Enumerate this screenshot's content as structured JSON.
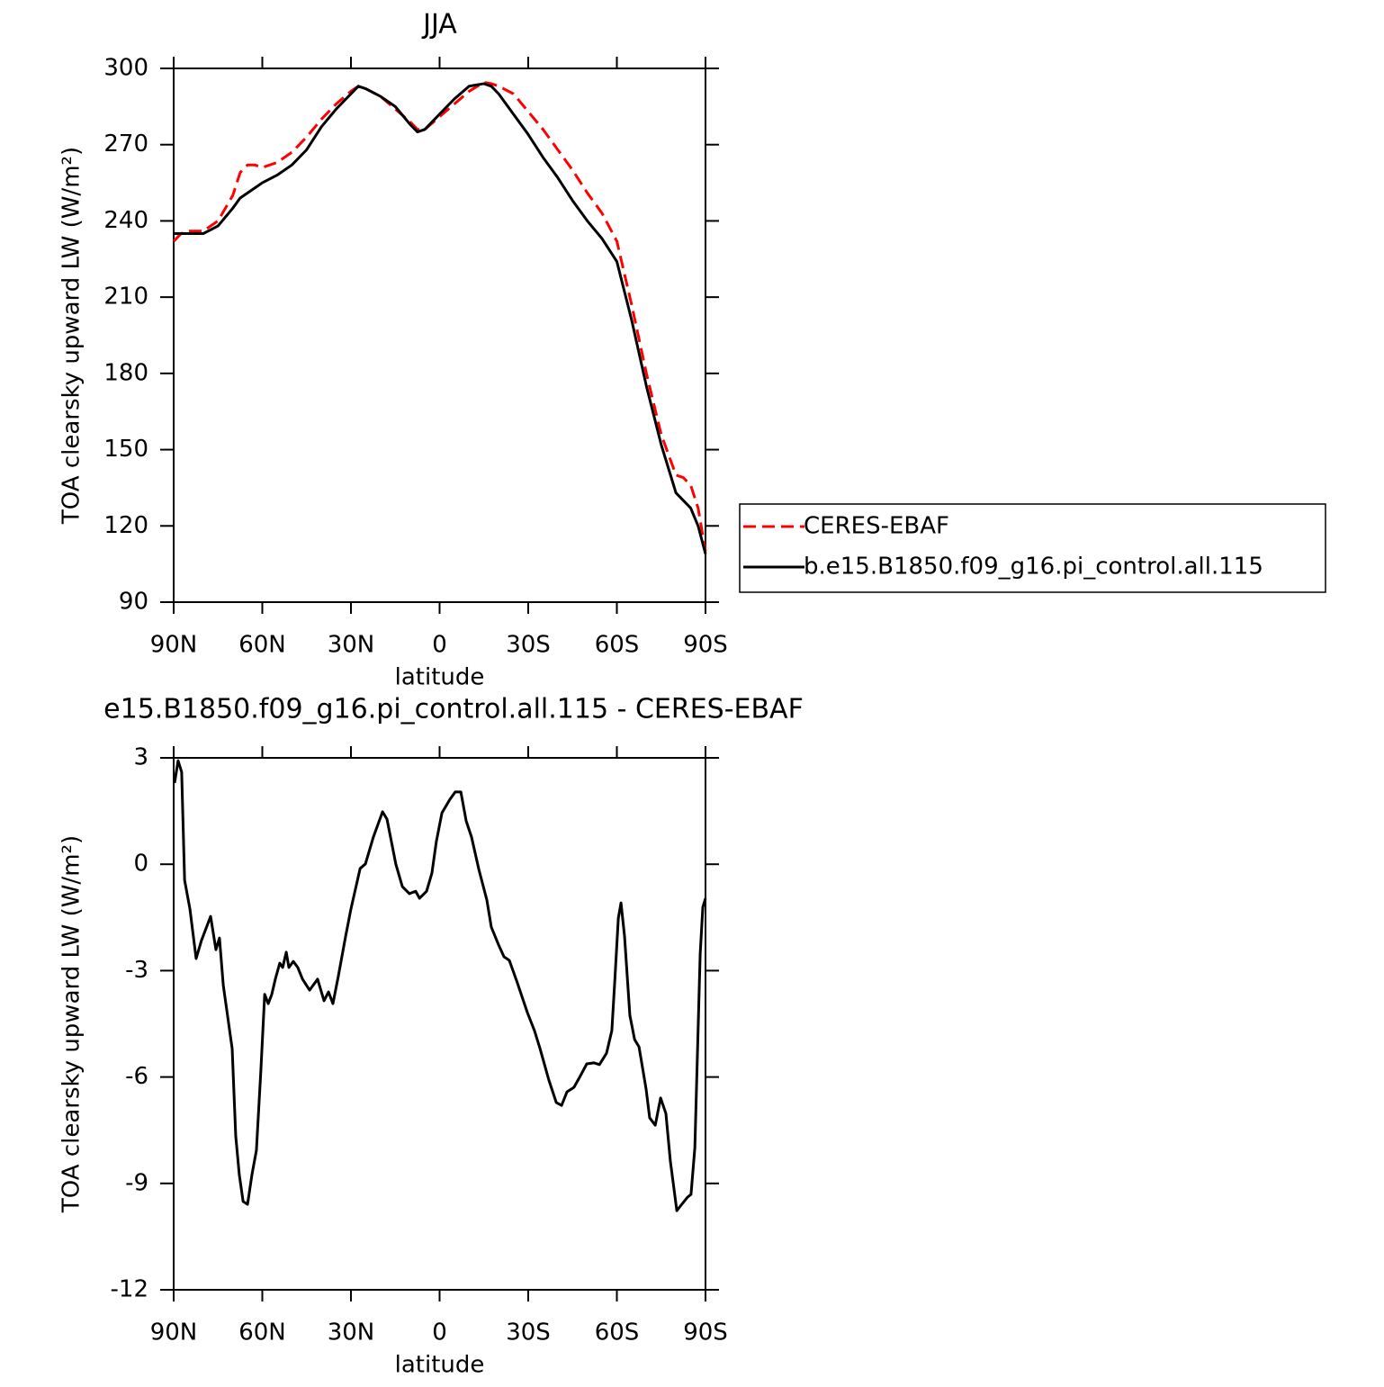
{
  "chart_data": [
    {
      "type": "line",
      "title": "JJA",
      "x_label": "latitude",
      "y_label": "TOA clearsky upward LW (W/m²)",
      "x": [
        90,
        87.5,
        85,
        80,
        75,
        70,
        67.5,
        65,
        62.5,
        60,
        55,
        50,
        45,
        40,
        35,
        30,
        27.5,
        25,
        20,
        15,
        10,
        7.5,
        5,
        0,
        -5,
        -10,
        -15,
        -17.5,
        -20,
        -25,
        -30,
        -35,
        -40,
        -45,
        -50,
        -55,
        -60,
        -65,
        -70,
        -75,
        -80,
        -82.5,
        -85,
        -87.5,
        -90
      ],
      "xlim": [
        90,
        -90
      ],
      "xticks": [
        {
          "value": 90,
          "label": "90N"
        },
        {
          "value": 60,
          "label": "60N"
        },
        {
          "value": 30,
          "label": "30N"
        },
        0,
        {
          "value": -30,
          "label": "30S"
        },
        {
          "value": -60,
          "label": "60S"
        },
        {
          "value": -90,
          "label": "90S"
        }
      ],
      "ylim": [
        90,
        300
      ],
      "yticks": [
        90,
        120,
        150,
        180,
        210,
        240,
        270,
        300
      ],
      "legend": "right",
      "series": [
        {
          "name": "CERES-EBAF",
          "color": "#ff0000",
          "dash": "dashed",
          "values": [
            232,
            235,
            236,
            236,
            240,
            250,
            259,
            262,
            262,
            261,
            263,
            267,
            273,
            280,
            286,
            291,
            293,
            292,
            289,
            284,
            279,
            276,
            276,
            281,
            286,
            291,
            294.5,
            294,
            293,
            290,
            283,
            276,
            268,
            260,
            251,
            243,
            232,
            207,
            180,
            156,
            140,
            139,
            136,
            127,
            110
          ]
        },
        {
          "name": "b.e15.B1850.f09_g16.pi_control.all.115",
          "color": "#000000",
          "dash": "solid",
          "values": [
            235,
            235,
            235,
            235,
            238,
            245,
            249,
            251,
            253,
            255,
            258,
            262,
            268,
            277,
            284,
            290,
            293,
            292,
            289,
            285,
            278,
            275,
            276,
            282,
            288,
            293,
            294,
            293,
            290,
            282,
            274,
            265,
            257,
            248,
            240,
            233,
            224,
            201,
            175,
            152,
            133,
            130,
            127,
            120,
            109
          ]
        }
      ]
    },
    {
      "type": "line",
      "title": "e15.B1850.f09_g16.pi_control.all.115 - CERES-EBAF",
      "x_label": "latitude",
      "y_label": "TOA clearsky upward LW (W/m²)",
      "x": [
        89.7,
        88.5,
        87.3,
        86.3,
        84.5,
        82.4,
        80.6,
        77.5,
        75.7,
        74.5,
        73.2,
        70.2,
        69.0,
        67.8,
        66.5,
        65.0,
        63.5,
        62.0,
        60.5,
        59.2,
        58.0,
        56.8,
        55.6,
        54.1,
        53.1,
        51.9,
        51.0,
        49.5,
        48.0,
        46.4,
        44.0,
        41.3,
        39.1,
        37.6,
        36.1,
        34.3,
        31.8,
        30.0,
        26.9,
        25.1,
        22.4,
        19.3,
        17.8,
        14.8,
        12.6,
        10.2,
        8.1,
        6.8,
        4.4,
        2.6,
        1.1,
        -0.8,
        -3.5,
        -5.3,
        -7.2,
        -9.0,
        -10.8,
        -13.3,
        -16.0,
        -17.5,
        -20.0,
        -21.8,
        -23.6,
        -26.1,
        -29.7,
        -32.1,
        -34.0,
        -37.0,
        -39.5,
        -41.3,
        -43.1,
        -45.5,
        -47.7,
        -49.8,
        -52.2,
        -54.1,
        -56.5,
        -58.3,
        -59.3,
        -60.5,
        -61.4,
        -62.6,
        -64.4,
        -66.0,
        -67.5,
        -69.9,
        -71.1,
        -73.0,
        -74.8,
        -76.6,
        -78.1,
        -80.3,
        -81.5,
        -83.9,
        -85.1,
        -86.4,
        -88.2,
        -89.1,
        -90
      ],
      "values": [
        2.29,
        2.92,
        2.6,
        -0.45,
        -1.26,
        -2.66,
        -2.15,
        -1.47,
        -2.41,
        -2.08,
        -3.42,
        -5.2,
        -7.66,
        -8.75,
        -9.51,
        -9.59,
        -8.75,
        -8.07,
        -5.83,
        -3.67,
        -3.93,
        -3.67,
        -3.24,
        -2.79,
        -2.91,
        -2.48,
        -2.91,
        -2.74,
        -2.91,
        -3.24,
        -3.55,
        -3.24,
        -3.85,
        -3.6,
        -3.93,
        -3.17,
        -2.03,
        -1.26,
        -0.12,
        0.01,
        0.77,
        1.48,
        1.27,
        0.0,
        -0.63,
        -0.83,
        -0.76,
        -0.96,
        -0.76,
        -0.25,
        0.64,
        1.45,
        1.83,
        2.04,
        2.04,
        1.22,
        0.77,
        -0.15,
        -1.01,
        -1.77,
        -2.28,
        -2.61,
        -2.71,
        -3.29,
        -4.18,
        -4.69,
        -5.2,
        -6.09,
        -6.72,
        -6.8,
        -6.42,
        -6.29,
        -5.96,
        -5.63,
        -5.6,
        -5.65,
        -5.33,
        -4.69,
        -3.29,
        -1.52,
        -1.09,
        -2.03,
        -4.26,
        -4.94,
        -5.15,
        -6.34,
        -7.15,
        -7.36,
        -6.59,
        -7.03,
        -8.37,
        -9.77,
        -9.64,
        -9.39,
        -9.31,
        -7.99,
        -2.53,
        -1.21,
        -0.96
      ],
      "color": "#000000",
      "xlim": [
        90,
        -90
      ],
      "xticks": [
        {
          "value": 90,
          "label": "90N"
        },
        {
          "value": 60,
          "label": "60N"
        },
        {
          "value": 30,
          "label": "30N"
        },
        0,
        {
          "value": -30,
          "label": "30S"
        },
        {
          "value": -60,
          "label": "60S"
        },
        {
          "value": -90,
          "label": "90S"
        }
      ],
      "ylim": [
        -12,
        3
      ],
      "yticks": [
        -12,
        -9,
        -6,
        -3,
        0,
        3
      ]
    }
  ]
}
